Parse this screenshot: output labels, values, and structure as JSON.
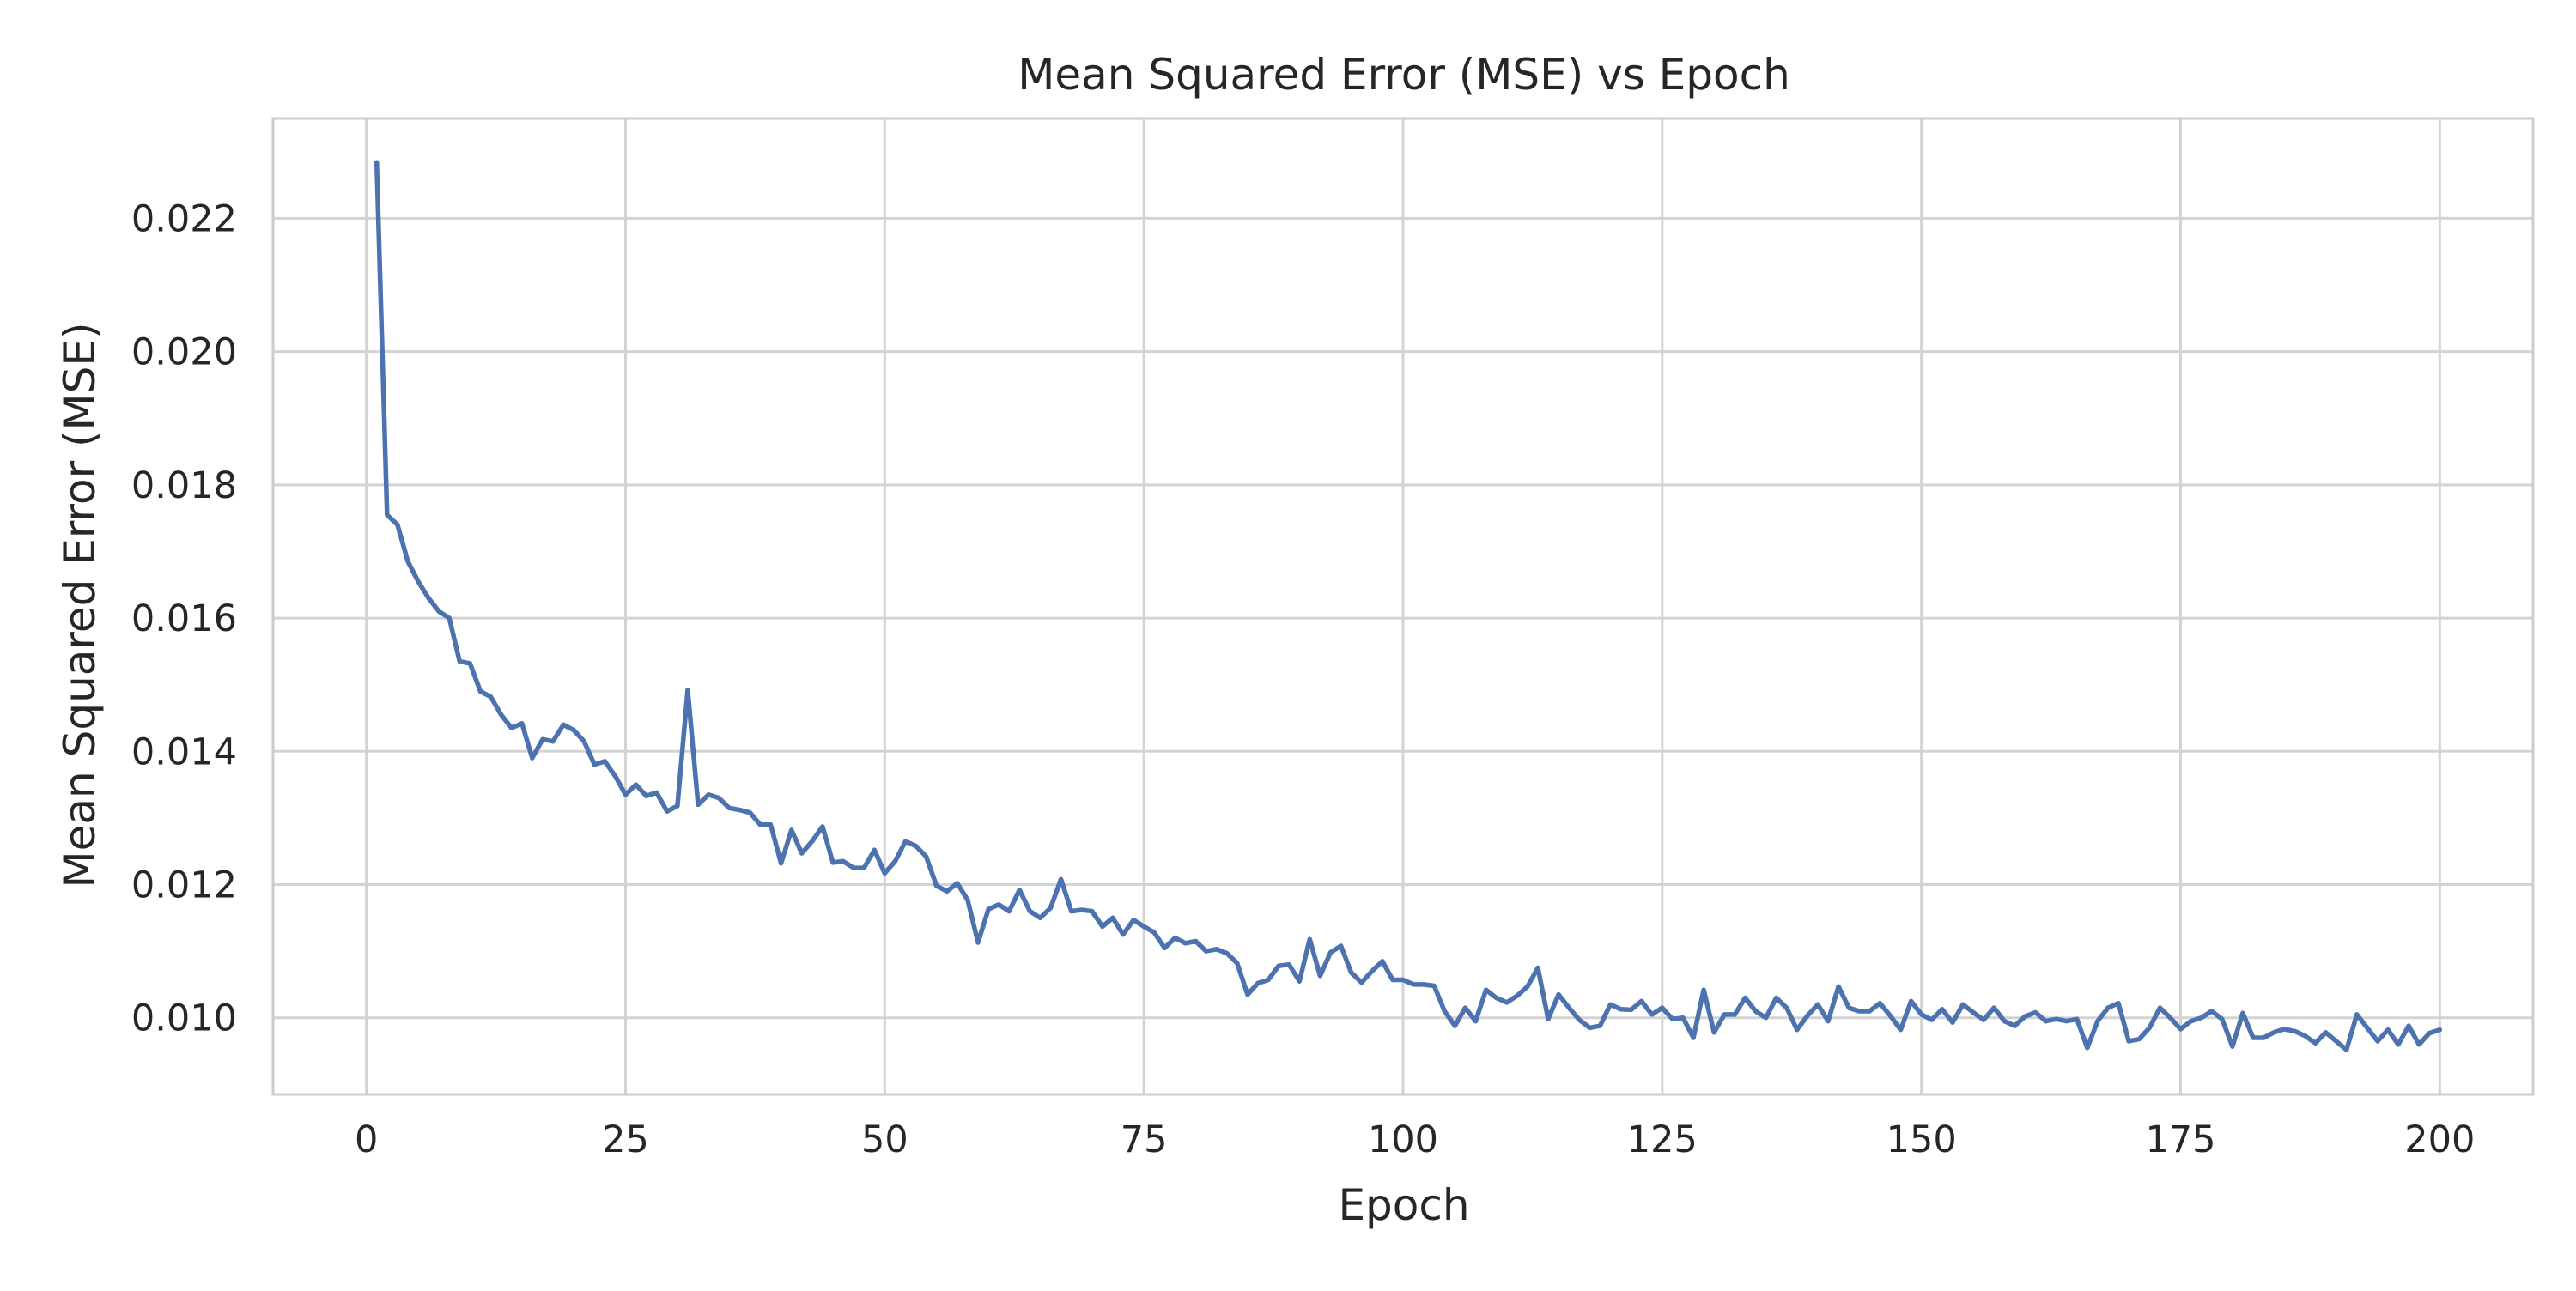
{
  "chart_data": {
    "type": "line",
    "title": "Mean Squared Error (MSE) vs Epoch",
    "xlabel": "Epoch",
    "ylabel": "Mean Squared Error (MSE)",
    "xlim": [
      -9,
      209
    ],
    "ylim": [
      0.00885,
      0.0235
    ],
    "x_ticks": [
      0,
      25,
      50,
      75,
      100,
      125,
      150,
      175,
      200
    ],
    "x_tick_labels": [
      "0",
      "25",
      "50",
      "75",
      "100",
      "125",
      "150",
      "175",
      "200"
    ],
    "y_ticks": [
      0.01,
      0.012,
      0.014,
      0.016,
      0.018,
      0.02,
      0.022
    ],
    "y_tick_labels": [
      "0.010",
      "0.012",
      "0.014",
      "0.016",
      "0.018",
      "0.020",
      "0.022"
    ],
    "grid": true,
    "legend": false,
    "line_color": "#4c72b0",
    "grid_color": "#d3d3d3",
    "series": [
      {
        "x": [
          1,
          2,
          3,
          4,
          5,
          6,
          7,
          8,
          9,
          10,
          11,
          12,
          13,
          14,
          15,
          16,
          17,
          18,
          19,
          20,
          21,
          22,
          23,
          24,
          25,
          26,
          27,
          28,
          29,
          30,
          31,
          32,
          33,
          34,
          35,
          36,
          37,
          38,
          39,
          40,
          41,
          42,
          43,
          44,
          45,
          46,
          47,
          48,
          49,
          50,
          51,
          52,
          53,
          54,
          55,
          56,
          57,
          58,
          59,
          60,
          61,
          62,
          63,
          64,
          65,
          66,
          67,
          68,
          69,
          70,
          71,
          72,
          73,
          74,
          75,
          76,
          77,
          78,
          79,
          80,
          81,
          82,
          83,
          84,
          85,
          86,
          87,
          88,
          89,
          90,
          91,
          92,
          93,
          94,
          95,
          96,
          97,
          98,
          99,
          100,
          101,
          102,
          103,
          104,
          105,
          106,
          107,
          108,
          109,
          110,
          111,
          112,
          113,
          114,
          115,
          116,
          117,
          118,
          119,
          120,
          121,
          122,
          123,
          124,
          125,
          126,
          127,
          128,
          129,
          130,
          131,
          132,
          133,
          134,
          135,
          136,
          137,
          138,
          139,
          140,
          141,
          142,
          143,
          144,
          145,
          146,
          147,
          148,
          149,
          150,
          151,
          152,
          153,
          154,
          155,
          156,
          157,
          158,
          159,
          160,
          161,
          162,
          163,
          164,
          165,
          166,
          167,
          168,
          169,
          170,
          171,
          172,
          173,
          174,
          175,
          176,
          177,
          178,
          179,
          180,
          181,
          182,
          183,
          184,
          185,
          186,
          187,
          188,
          189,
          190,
          191,
          192,
          193,
          194,
          195,
          196,
          197,
          198,
          199,
          200
        ],
        "y": [
          0.02284,
          0.01755,
          0.0174,
          0.01685,
          0.01655,
          0.0163,
          0.0161,
          0.016,
          0.01535,
          0.01532,
          0.0149,
          0.01482,
          0.01455,
          0.01435,
          0.01442,
          0.0139,
          0.01418,
          0.01415,
          0.0144,
          0.01432,
          0.01415,
          0.0138,
          0.01385,
          0.01363,
          0.01335,
          0.0135,
          0.01333,
          0.01338,
          0.0131,
          0.01318,
          0.01492,
          0.0132,
          0.01335,
          0.0133,
          0.01315,
          0.01312,
          0.01308,
          0.0129,
          0.0129,
          0.01232,
          0.01282,
          0.01247,
          0.01265,
          0.01287,
          0.01233,
          0.01235,
          0.01225,
          0.01225,
          0.01252,
          0.01217,
          0.01235,
          0.01265,
          0.01258,
          0.01242,
          0.01198,
          0.0119,
          0.01202,
          0.01177,
          0.01113,
          0.01163,
          0.0117,
          0.0116,
          0.01192,
          0.0116,
          0.0115,
          0.01165,
          0.01208,
          0.0116,
          0.01162,
          0.0116,
          0.01137,
          0.0115,
          0.01125,
          0.01147,
          0.01137,
          0.01128,
          0.01105,
          0.0112,
          0.01112,
          0.01115,
          0.011,
          0.01103,
          0.01097,
          0.01082,
          0.01035,
          0.01052,
          0.01057,
          0.01078,
          0.0108,
          0.01055,
          0.01118,
          0.01063,
          0.01098,
          0.01108,
          0.01068,
          0.01053,
          0.0107,
          0.01085,
          0.01057,
          0.01057,
          0.0105,
          0.0105,
          0.01048,
          0.0101,
          0.00988,
          0.01015,
          0.00995,
          0.01042,
          0.0103,
          0.01023,
          0.01033,
          0.01047,
          0.01075,
          0.00998,
          0.01035,
          0.01015,
          0.00997,
          0.00985,
          0.00988,
          0.0102,
          0.01013,
          0.01012,
          0.01025,
          0.01005,
          0.01015,
          0.00998,
          0.01,
          0.0097,
          0.01042,
          0.00978,
          0.01005,
          0.01005,
          0.0103,
          0.0101,
          0.01,
          0.0103,
          0.01015,
          0.00982,
          0.01003,
          0.0102,
          0.00995,
          0.01047,
          0.01015,
          0.0101,
          0.0101,
          0.01022,
          0.01003,
          0.00982,
          0.01025,
          0.01005,
          0.00997,
          0.01013,
          0.00993,
          0.0102,
          0.01008,
          0.00997,
          0.01015,
          0.00995,
          0.00988,
          0.01002,
          0.01008,
          0.00995,
          0.00998,
          0.00995,
          0.00998,
          0.00955,
          0.00995,
          0.01015,
          0.01022,
          0.00965,
          0.00968,
          0.00985,
          0.01015,
          0.01,
          0.00983,
          0.00995,
          0.01,
          0.0101,
          0.00998,
          0.00957,
          0.01007,
          0.0097,
          0.0097,
          0.00978,
          0.00983,
          0.0098,
          0.00973,
          0.00962,
          0.00978,
          0.00965,
          0.00952,
          0.01005,
          0.00985,
          0.00965,
          0.00982,
          0.0096,
          0.00988,
          0.0096,
          0.00977,
          0.00982
        ]
      }
    ]
  }
}
